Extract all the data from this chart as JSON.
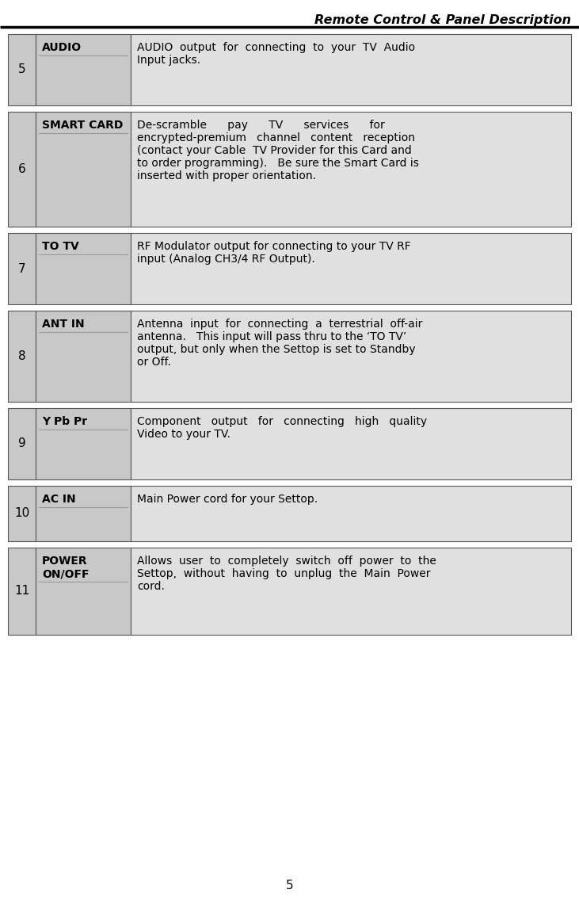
{
  "title": "Remote Control & Panel Description",
  "page_number": "5",
  "bg_color": "#ffffff",
  "header_line_color": "#000000",
  "cell_bg_gray": "#c8c8c8",
  "cell_bg_light": "#e0e0e0",
  "cell_border_color": "#555555",
  "inner_line_color": "#999999",
  "rows": [
    {
      "num": "5",
      "label": "AUDIO",
      "desc": "AUDIO  output  for  connecting  to  your  TV  Audio\nInput jacks.",
      "label_lines": 1
    },
    {
      "num": "6",
      "label": "SMART CARD",
      "desc": "De-scramble      pay      TV      services      for\nencrypted-premium   channel   content   reception\n(contact your Cable  TV Provider for this Card and\nto order programming).   Be sure the Smart Card is\ninserted with proper orientation.",
      "label_lines": 1
    },
    {
      "num": "7",
      "label": "TO TV",
      "desc": "RF Modulator output for connecting to your TV RF\ninput (Analog CH3/4 RF Output).",
      "label_lines": 1
    },
    {
      "num": "8",
      "label": "ANT IN",
      "desc": "Antenna  input  for  connecting  a  terrestrial  off-air\nantenna.   This input will pass thru to the ‘TO TV’\noutput, but only when the Settop is set to Standby\nor Off.",
      "label_lines": 1
    },
    {
      "num": "9",
      "label": "Y Pb Pr",
      "desc": "Component   output   for   connecting   high   quality\nVideo to your TV.",
      "label_lines": 1
    },
    {
      "num": "10",
      "label": "AC IN",
      "desc": "Main Power cord for your Settop.",
      "label_lines": 1
    },
    {
      "num": "11",
      "label": "POWER\nON/OFF",
      "desc": "Allows  user  to  completely  switch  off  power  to  the\nSettop,  without  having  to  unplug  the  Main  Power\ncord.",
      "label_lines": 2
    }
  ],
  "title_fontsize": 11.5,
  "font_size_label": 10,
  "font_size_desc": 10,
  "font_size_num": 11
}
